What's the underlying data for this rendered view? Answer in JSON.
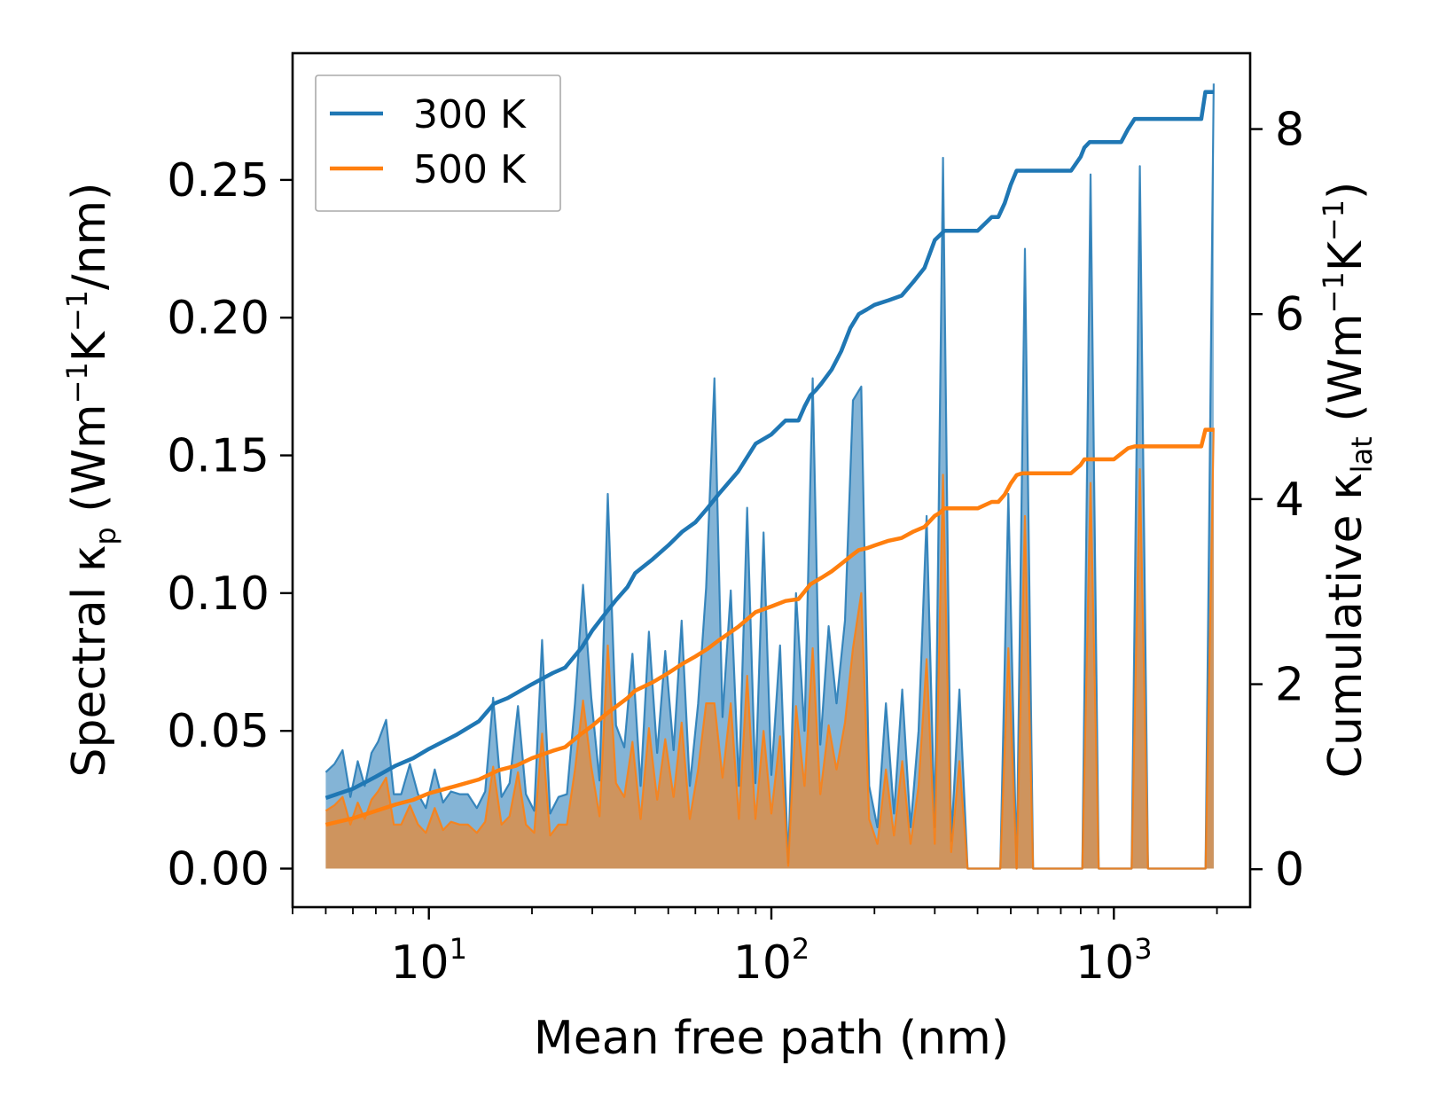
{
  "chart_data": {
    "type": "line",
    "xlabel": "Mean free path (nm)",
    "ylabel_left": {
      "prefix": "Spectral κ",
      "sub": "p",
      "units_open": " (Wm",
      "sup1": "−1",
      "units_mid": "K",
      "sup2": "−1",
      "units_close": "/nm)"
    },
    "ylabel_right": {
      "prefix": "Cumulative κ",
      "sub": "lat",
      "units_open": " (Wm",
      "sup1": "−1",
      "units_mid": "K",
      "sup2": "−1",
      "units_close": ")"
    },
    "x_scale": "log",
    "xlim": [
      4.0,
      2500
    ],
    "x_ticks": [
      {
        "value": 10,
        "base": "10",
        "exp": "1"
      },
      {
        "value": 100,
        "base": "10",
        "exp": "2"
      },
      {
        "value": 1000,
        "base": "10",
        "exp": "3"
      }
    ],
    "ylim_left": [
      -0.014,
      0.296
    ],
    "y_ticks_left": [
      {
        "value": 0.0,
        "label": "0.00"
      },
      {
        "value": 0.05,
        "label": "0.05"
      },
      {
        "value": 0.1,
        "label": "0.10"
      },
      {
        "value": 0.15,
        "label": "0.15"
      },
      {
        "value": 0.2,
        "label": "0.20"
      },
      {
        "value": 0.25,
        "label": "0.25"
      }
    ],
    "ylim_right": [
      -0.41,
      8.82
    ],
    "y_ticks_right": [
      {
        "value": 0,
        "label": "0"
      },
      {
        "value": 2,
        "label": "2"
      },
      {
        "value": 4,
        "label": "4"
      },
      {
        "value": 6,
        "label": "6"
      },
      {
        "value": 8,
        "label": "8"
      }
    ],
    "legend": {
      "location": "top-left",
      "entries": [
        {
          "label": "300 K",
          "color": "#1f77b4"
        },
        {
          "label": "500 K",
          "color": "#ff7f0e"
        }
      ]
    },
    "series": [
      {
        "name": "300 K spectral",
        "axis": "left",
        "color": "#1f77b4",
        "style": "filled",
        "x": [
          5,
          5.3,
          5.6,
          5.9,
          6.2,
          6.5,
          6.8,
          7.1,
          7.5,
          7.9,
          8.3,
          8.8,
          9.3,
          9.8,
          10.4,
          11,
          11.6,
          12.3,
          13,
          13.8,
          14.6,
          15.4,
          16.3,
          17.2,
          18.2,
          19.2,
          20.3,
          21.4,
          22.6,
          23.9,
          25.3,
          26.7,
          28.2,
          29.8,
          31.5,
          33.3,
          35.2,
          37.2,
          39.3,
          41.5,
          43.9,
          46.4,
          49,
          51.8,
          54.7,
          57.8,
          61.1,
          64.5,
          68.2,
          72,
          76.1,
          80.4,
          85,
          89.8,
          94.9,
          100,
          106,
          112,
          118,
          125,
          132,
          139,
          147,
          155,
          164,
          173,
          183,
          193,
          204,
          216,
          228,
          241,
          255,
          269,
          284,
          300,
          317,
          335,
          354,
          374,
          395,
          418,
          441,
          466,
          492,
          520,
          550,
          581,
          614,
          649,
          686,
          725,
          766,
          809,
          855,
          903,
          955,
          1009,
          1066,
          1127,
          1191,
          1258,
          1330,
          1405,
          1485,
          1569,
          1658,
          1752,
          1852,
          1957
        ],
        "values": [
          0.035,
          0.038,
          0.043,
          0.026,
          0.039,
          0.03,
          0.042,
          0.046,
          0.054,
          0.027,
          0.027,
          0.038,
          0.027,
          0.022,
          0.036,
          0.024,
          0.028,
          0.027,
          0.027,
          0.022,
          0.028,
          0.062,
          0.026,
          0.031,
          0.059,
          0.027,
          0.021,
          0.083,
          0.02,
          0.026,
          0.027,
          0.06,
          0.103,
          0.062,
          0.032,
          0.136,
          0.052,
          0.044,
          0.078,
          0.03,
          0.086,
          0.042,
          0.079,
          0.043,
          0.09,
          0.03,
          0.06,
          0.102,
          0.178,
          0.055,
          0.101,
          0.03,
          0.131,
          0.031,
          0.122,
          0.034,
          0.081,
          0.002,
          0.1,
          0.05,
          0.178,
          0.045,
          0.088,
          0.06,
          0.09,
          0.17,
          0.175,
          0.03,
          0.015,
          0.06,
          0.02,
          0.065,
          0.015,
          0.05,
          0.128,
          0.015,
          0.258,
          0.01,
          0.065,
          0.0,
          0.0,
          0.0,
          0.0,
          0.0,
          0.136,
          0.0,
          0.225,
          0.0,
          0.0,
          0.0,
          0.0,
          0.0,
          0.0,
          0.0,
          0.252,
          0.0,
          0.0,
          0.0,
          0.0,
          0.0,
          0.255,
          0.0,
          0.0,
          0.0,
          0.0,
          0.0,
          0.0,
          0.0,
          0.0,
          0.285
        ]
      },
      {
        "name": "500 K spectral",
        "axis": "left",
        "color": "#ff7f0e",
        "style": "filled",
        "x": [
          5,
          5.3,
          5.6,
          5.9,
          6.2,
          6.5,
          6.8,
          7.1,
          7.5,
          7.9,
          8.3,
          8.8,
          9.3,
          9.8,
          10.4,
          11,
          11.6,
          12.3,
          13,
          13.8,
          14.6,
          15.4,
          16.3,
          17.2,
          18.2,
          19.2,
          20.3,
          21.4,
          22.6,
          23.9,
          25.3,
          26.7,
          28.2,
          29.8,
          31.5,
          33.3,
          35.2,
          37.2,
          39.3,
          41.5,
          43.9,
          46.4,
          49,
          51.8,
          54.7,
          57.8,
          61.1,
          64.5,
          68.2,
          72,
          76.1,
          80.4,
          85,
          89.8,
          94.9,
          100,
          106,
          112,
          118,
          125,
          132,
          139,
          147,
          155,
          164,
          173,
          183,
          193,
          204,
          216,
          228,
          241,
          255,
          269,
          284,
          300,
          317,
          335,
          354,
          374,
          395,
          418,
          441,
          466,
          492,
          520,
          550,
          581,
          614,
          649,
          686,
          725,
          766,
          809,
          855,
          903,
          955,
          1009,
          1066,
          1127,
          1191,
          1258,
          1330,
          1405,
          1485,
          1569,
          1658,
          1752,
          1852,
          1957
        ],
        "values": [
          0.021,
          0.023,
          0.026,
          0.016,
          0.024,
          0.018,
          0.025,
          0.028,
          0.033,
          0.016,
          0.016,
          0.023,
          0.016,
          0.013,
          0.022,
          0.014,
          0.017,
          0.016,
          0.016,
          0.013,
          0.017,
          0.037,
          0.016,
          0.019,
          0.035,
          0.016,
          0.013,
          0.049,
          0.012,
          0.016,
          0.016,
          0.036,
          0.061,
          0.037,
          0.019,
          0.081,
          0.031,
          0.026,
          0.046,
          0.018,
          0.051,
          0.025,
          0.047,
          0.026,
          0.053,
          0.018,
          0.036,
          0.06,
          0.06,
          0.033,
          0.06,
          0.018,
          0.07,
          0.018,
          0.05,
          0.02,
          0.048,
          0.001,
          0.059,
          0.03,
          0.08,
          0.027,
          0.052,
          0.036,
          0.053,
          0.08,
          0.1,
          0.018,
          0.009,
          0.036,
          0.012,
          0.039,
          0.009,
          0.03,
          0.076,
          0.009,
          0.143,
          0.006,
          0.039,
          0.0,
          0.0,
          0.0,
          0.0,
          0.0,
          0.08,
          0.0,
          0.128,
          0.0,
          0.0,
          0.0,
          0.0,
          0.0,
          0.0,
          0.0,
          0.14,
          0.0,
          0.0,
          0.0,
          0.0,
          0.0,
          0.145,
          0.0,
          0.0,
          0.0,
          0.0,
          0.0,
          0.0,
          0.0,
          0.0,
          0.16
        ]
      },
      {
        "name": "300 K",
        "axis": "right",
        "color": "#1f77b4",
        "style": "line",
        "x": [
          5,
          6,
          7,
          8,
          9,
          10,
          12,
          14,
          15.5,
          17,
          20,
          23,
          25,
          28,
          30,
          33,
          35,
          38,
          40,
          45,
          50,
          55,
          60,
          65,
          70,
          80,
          90,
          100,
          110,
          120,
          125,
          130,
          135,
          140,
          150,
          160,
          170,
          180,
          190,
          200,
          220,
          240,
          260,
          280,
          300,
          310,
          320,
          350,
          400,
          440,
          460,
          480,
          500,
          520,
          540,
          580,
          650,
          700,
          750,
          800,
          820,
          850,
          880,
          950,
          1050,
          1100,
          1150,
          1300,
          1500,
          1700,
          1800,
          1850,
          1900,
          1960
        ],
        "values": [
          0.77,
          0.87,
          1.0,
          1.12,
          1.2,
          1.3,
          1.45,
          1.6,
          1.79,
          1.85,
          2.0,
          2.12,
          2.18,
          2.4,
          2.58,
          2.78,
          2.9,
          3.05,
          3.2,
          3.35,
          3.5,
          3.65,
          3.75,
          3.9,
          4.05,
          4.3,
          4.6,
          4.7,
          4.85,
          4.85,
          5.0,
          5.12,
          5.18,
          5.25,
          5.4,
          5.6,
          5.85,
          6.0,
          6.05,
          6.1,
          6.15,
          6.2,
          6.35,
          6.5,
          6.8,
          6.85,
          6.9,
          6.9,
          6.9,
          7.05,
          7.05,
          7.2,
          7.4,
          7.55,
          7.55,
          7.55,
          7.55,
          7.55,
          7.55,
          7.7,
          7.8,
          7.86,
          7.86,
          7.86,
          7.86,
          8.0,
          8.11,
          8.11,
          8.11,
          8.11,
          8.11,
          8.4,
          8.4,
          8.4
        ]
      },
      {
        "name": "500 K",
        "axis": "right",
        "color": "#ff7f0e",
        "style": "line",
        "x": [
          5,
          6,
          7,
          8,
          9,
          10,
          12,
          14,
          16,
          18,
          20,
          23,
          25,
          28,
          30,
          33,
          35,
          38,
          40,
          45,
          50,
          55,
          60,
          65,
          70,
          80,
          90,
          100,
          110,
          120,
          125,
          130,
          140,
          150,
          160,
          170,
          180,
          190,
          200,
          220,
          240,
          260,
          280,
          300,
          310,
          320,
          350,
          400,
          440,
          460,
          480,
          500,
          520,
          540,
          580,
          650,
          750,
          800,
          820,
          850,
          900,
          1000,
          1100,
          1150,
          1300,
          1500,
          1700,
          1800,
          1850,
          1900,
          1960
        ],
        "values": [
          0.48,
          0.55,
          0.63,
          0.7,
          0.75,
          0.82,
          0.9,
          0.97,
          1.07,
          1.12,
          1.2,
          1.28,
          1.32,
          1.47,
          1.55,
          1.68,
          1.75,
          1.85,
          1.93,
          2.02,
          2.12,
          2.22,
          2.3,
          2.38,
          2.47,
          2.62,
          2.78,
          2.84,
          2.9,
          2.92,
          3.0,
          3.08,
          3.15,
          3.22,
          3.3,
          3.38,
          3.45,
          3.47,
          3.5,
          3.55,
          3.58,
          3.65,
          3.7,
          3.82,
          3.85,
          3.9,
          3.9,
          3.9,
          3.97,
          3.97,
          4.05,
          4.17,
          4.26,
          4.28,
          4.28,
          4.28,
          4.28,
          4.37,
          4.43,
          4.43,
          4.43,
          4.43,
          4.55,
          4.57,
          4.57,
          4.57,
          4.57,
          4.57,
          4.75,
          4.75,
          4.75
        ]
      }
    ]
  }
}
